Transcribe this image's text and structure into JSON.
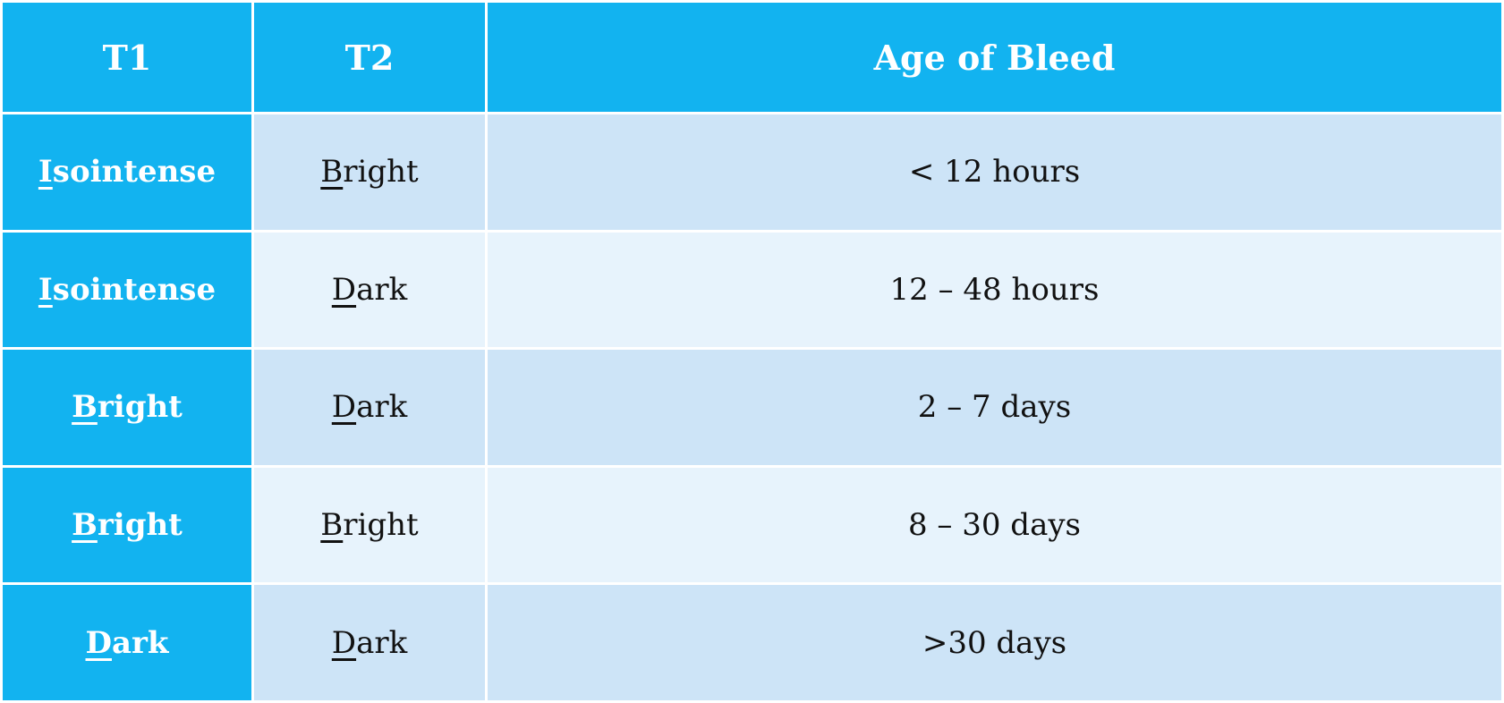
{
  "table": {
    "header": [
      "T1",
      "T2",
      "Age of Bleed"
    ],
    "rows": [
      [
        "Isointense",
        "Bright",
        "< 12 hours"
      ],
      [
        "Isointense",
        "Dark",
        "12 – 48 hours"
      ],
      [
        "Bright",
        "Dark",
        "2 – 7 days"
      ],
      [
        "Bright",
        "Bright",
        "8 – 30 days"
      ],
      [
        "Dark",
        "Dark",
        ">30 days"
      ]
    ]
  }
}
